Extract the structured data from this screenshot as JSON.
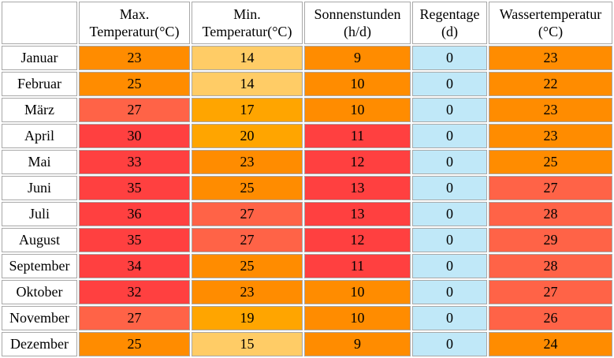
{
  "headers": [
    "",
    "Max.\nTemperatur(°C)",
    "Min.\nTemperatur(°C)",
    "Sonnenstunden\n(h/d)",
    "Regentage\n(d)",
    "Wassertemperatur\n(°C)"
  ],
  "colors": {
    "light_orange": "#ffcc66",
    "amber": "#ffa500",
    "orange": "#ff8c00",
    "coral": "#ff6347",
    "red": "#ff4040",
    "light_blue": "#c0e8f8"
  },
  "rows": [
    {
      "month": "Januar",
      "cells": [
        {
          "v": "23",
          "c": "orange"
        },
        {
          "v": "14",
          "c": "light_orange"
        },
        {
          "v": "9",
          "c": "orange"
        },
        {
          "v": "0",
          "c": "light_blue"
        },
        {
          "v": "23",
          "c": "orange"
        }
      ]
    },
    {
      "month": "Februar",
      "cells": [
        {
          "v": "25",
          "c": "orange"
        },
        {
          "v": "14",
          "c": "light_orange"
        },
        {
          "v": "10",
          "c": "orange"
        },
        {
          "v": "0",
          "c": "light_blue"
        },
        {
          "v": "22",
          "c": "orange"
        }
      ]
    },
    {
      "month": "März",
      "cells": [
        {
          "v": "27",
          "c": "coral"
        },
        {
          "v": "17",
          "c": "amber"
        },
        {
          "v": "10",
          "c": "orange"
        },
        {
          "v": "0",
          "c": "light_blue"
        },
        {
          "v": "23",
          "c": "orange"
        }
      ]
    },
    {
      "month": "April",
      "cells": [
        {
          "v": "30",
          "c": "red"
        },
        {
          "v": "20",
          "c": "amber"
        },
        {
          "v": "11",
          "c": "red"
        },
        {
          "v": "0",
          "c": "light_blue"
        },
        {
          "v": "23",
          "c": "orange"
        }
      ]
    },
    {
      "month": "Mai",
      "cells": [
        {
          "v": "33",
          "c": "red"
        },
        {
          "v": "23",
          "c": "orange"
        },
        {
          "v": "12",
          "c": "red"
        },
        {
          "v": "0",
          "c": "light_blue"
        },
        {
          "v": "25",
          "c": "orange"
        }
      ]
    },
    {
      "month": "Juni",
      "cells": [
        {
          "v": "35",
          "c": "red"
        },
        {
          "v": "25",
          "c": "orange"
        },
        {
          "v": "13",
          "c": "red"
        },
        {
          "v": "0",
          "c": "light_blue"
        },
        {
          "v": "27",
          "c": "coral"
        }
      ]
    },
    {
      "month": "Juli",
      "cells": [
        {
          "v": "36",
          "c": "red"
        },
        {
          "v": "27",
          "c": "coral"
        },
        {
          "v": "13",
          "c": "red"
        },
        {
          "v": "0",
          "c": "light_blue"
        },
        {
          "v": "28",
          "c": "coral"
        }
      ]
    },
    {
      "month": "August",
      "cells": [
        {
          "v": "35",
          "c": "red"
        },
        {
          "v": "27",
          "c": "coral"
        },
        {
          "v": "12",
          "c": "red"
        },
        {
          "v": "0",
          "c": "light_blue"
        },
        {
          "v": "29",
          "c": "coral"
        }
      ]
    },
    {
      "month": "September",
      "cells": [
        {
          "v": "34",
          "c": "red"
        },
        {
          "v": "25",
          "c": "orange"
        },
        {
          "v": "11",
          "c": "red"
        },
        {
          "v": "0",
          "c": "light_blue"
        },
        {
          "v": "28",
          "c": "coral"
        }
      ]
    },
    {
      "month": "Oktober",
      "cells": [
        {
          "v": "32",
          "c": "red"
        },
        {
          "v": "23",
          "c": "orange"
        },
        {
          "v": "10",
          "c": "orange"
        },
        {
          "v": "0",
          "c": "light_blue"
        },
        {
          "v": "27",
          "c": "coral"
        }
      ]
    },
    {
      "month": "November",
      "cells": [
        {
          "v": "27",
          "c": "coral"
        },
        {
          "v": "19",
          "c": "amber"
        },
        {
          "v": "10",
          "c": "orange"
        },
        {
          "v": "0",
          "c": "light_blue"
        },
        {
          "v": "26",
          "c": "coral"
        }
      ]
    },
    {
      "month": "Dezember",
      "cells": [
        {
          "v": "25",
          "c": "orange"
        },
        {
          "v": "15",
          "c": "light_orange"
        },
        {
          "v": "9",
          "c": "orange"
        },
        {
          "v": "0",
          "c": "light_blue"
        },
        {
          "v": "24",
          "c": "orange"
        }
      ]
    }
  ]
}
